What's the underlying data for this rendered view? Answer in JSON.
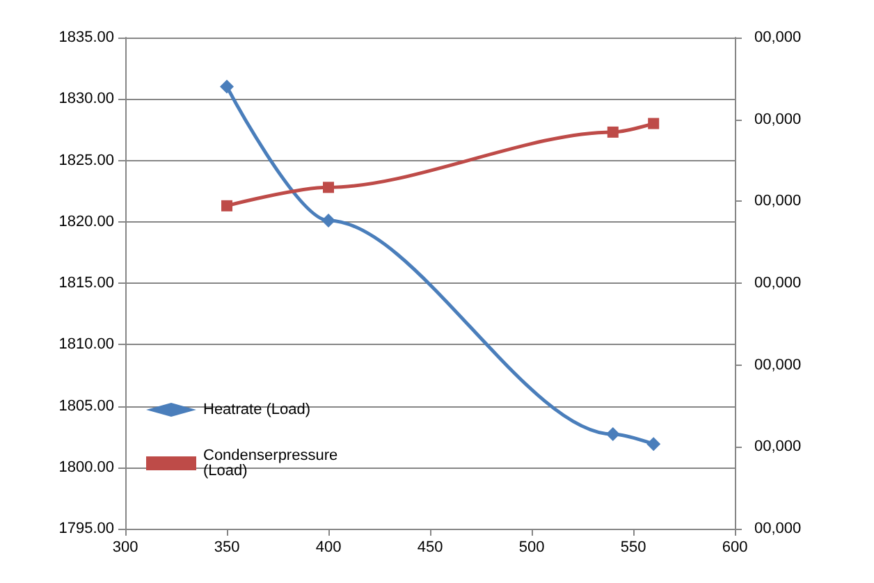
{
  "chart_data": {
    "type": "line",
    "x": [
      350,
      400,
      540,
      560
    ],
    "series": [
      {
        "name": "Heatrate (Load)",
        "color": "#4a7ebb",
        "marker": "diamond",
        "values": [
          1831,
          1820.1,
          1802.7,
          1801.9
        ]
      },
      {
        "name": "Condenserpressure (Load)",
        "color": "#be4b48",
        "marker": "square",
        "values": [
          1821.3,
          1822.8,
          1827.3,
          1828
        ]
      }
    ],
    "xlim": [
      300,
      600
    ],
    "xticks": [
      300,
      350,
      400,
      450,
      500,
      550,
      600
    ],
    "ylim": [
      1795,
      1835
    ],
    "yticks": [
      {
        "value": 1795,
        "label": "1795.00"
      },
      {
        "value": 1800,
        "label": "1800.00"
      },
      {
        "value": 1805,
        "label": "1805.00"
      },
      {
        "value": 1810,
        "label": "1810.00"
      },
      {
        "value": 1815,
        "label": "1815.00"
      },
      {
        "value": 1820,
        "label": "1820.00"
      },
      {
        "value": 1825,
        "label": "1825.00"
      },
      {
        "value": 1830,
        "label": "1830.00"
      },
      {
        "value": 1835,
        "label": "1835.00"
      }
    ],
    "annotations": [
      "00,000",
      "00,000",
      "00,000",
      "00,000",
      "00,000",
      "00,000",
      "00,000"
    ],
    "grid": "y",
    "legend": "bottom left",
    "line_style": "solid"
  }
}
